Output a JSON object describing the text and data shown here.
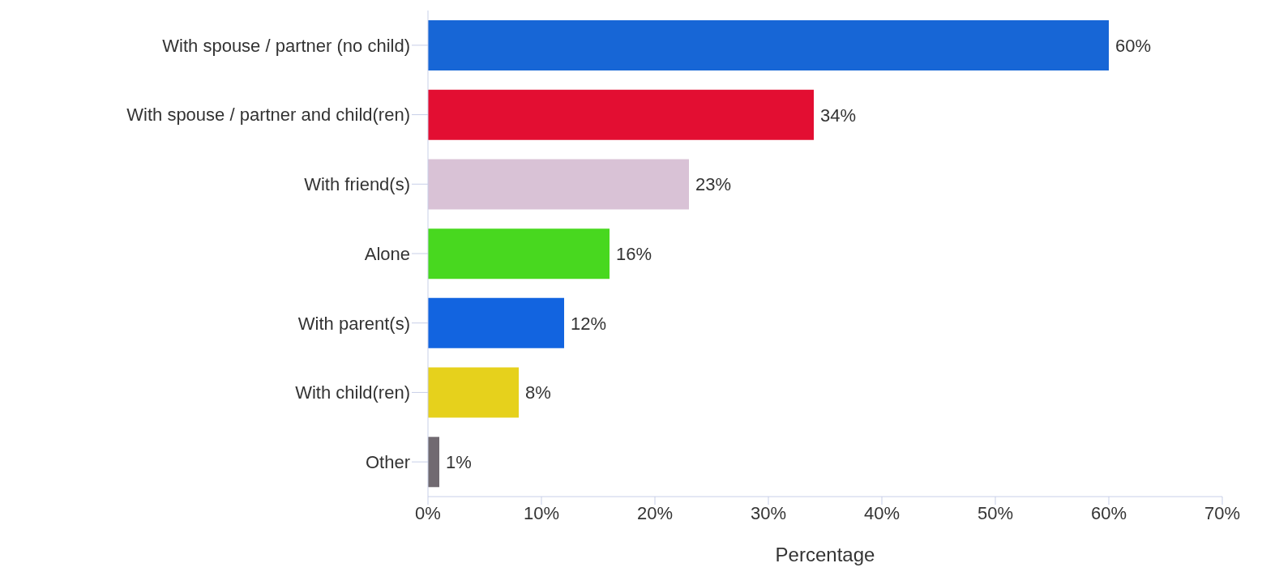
{
  "chart_data": {
    "type": "bar",
    "orientation": "horizontal",
    "xlabel": "Percentage",
    "categories": [
      "With spouse / partner (no child)",
      "With spouse / partner and child(ren)",
      "With friend(s)",
      "Alone",
      "With parent(s)",
      "With child(ren)",
      "Other"
    ],
    "values": [
      60,
      34,
      23,
      16,
      12,
      8,
      1
    ],
    "colors": [
      "#1766d6",
      "#e30e32",
      "#d9c2d6",
      "#48d81f",
      "#1264e0",
      "#e6d11c",
      "#716a71"
    ],
    "value_labels": [
      "60%",
      "34%",
      "23%",
      "16%",
      "12%",
      "8%",
      "1%"
    ],
    "xlim": [
      0,
      70
    ],
    "xticks": [
      {
        "value": 0,
        "label": "0%"
      },
      {
        "value": 10,
        "label": "10%"
      },
      {
        "value": 20,
        "label": "20%"
      },
      {
        "value": 30,
        "label": "30%"
      },
      {
        "value": 40,
        "label": "40%"
      },
      {
        "value": 50,
        "label": "50%"
      },
      {
        "value": 60,
        "label": "60%"
      },
      {
        "value": 70,
        "label": "70%"
      }
    ],
    "grid": false,
    "legend": false
  }
}
